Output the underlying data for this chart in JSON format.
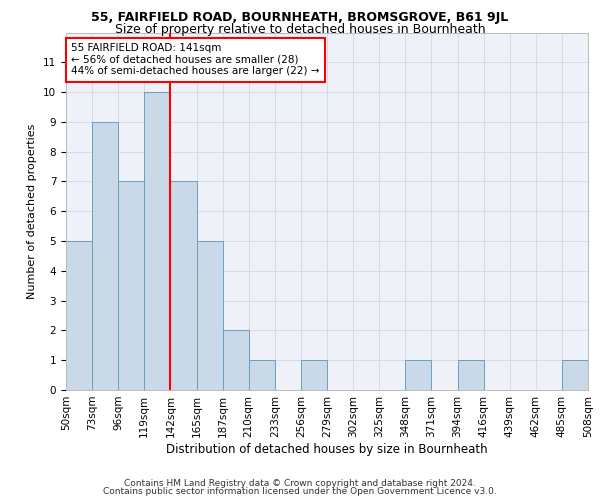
{
  "title1": "55, FAIRFIELD ROAD, BOURNHEATH, BROMSGROVE, B61 9JL",
  "title2": "Size of property relative to detached houses in Bournheath",
  "xlabel": "Distribution of detached houses by size in Bournheath",
  "ylabel": "Number of detached properties",
  "bar_values": [
    5,
    9,
    7,
    10,
    7,
    5,
    2,
    1,
    0,
    1,
    0,
    0,
    0,
    1,
    0,
    1,
    0,
    0,
    0,
    1
  ],
  "bar_labels": [
    "50sqm",
    "73sqm",
    "96sqm",
    "119sqm",
    "142sqm",
    "165sqm",
    "187sqm",
    "210sqm",
    "233sqm",
    "256sqm",
    "279sqm",
    "302sqm",
    "325sqm",
    "348sqm",
    "371sqm",
    "394sqm",
    "416sqm",
    "439sqm",
    "462sqm",
    "485sqm",
    "508sqm"
  ],
  "bar_color": "#c9d9e8",
  "bar_edge_color": "#6a9fc0",
  "ref_line_x": 3.5,
  "annotation_text": "55 FAIRFIELD ROAD: 141sqm\n← 56% of detached houses are smaller (28)\n44% of semi-detached houses are larger (22) →",
  "annotation_box_color": "white",
  "annotation_box_edge": "red",
  "ref_line_color": "red",
  "ylim": [
    0,
    12
  ],
  "yticks": [
    0,
    1,
    2,
    3,
    4,
    5,
    6,
    7,
    8,
    9,
    10,
    11,
    12
  ],
  "grid_color": "#d0d8e8",
  "background_color": "#eef2f8",
  "footer1": "Contains HM Land Registry data © Crown copyright and database right 2024.",
  "footer2": "Contains public sector information licensed under the Open Government Licence v3.0.",
  "title1_fontsize": 9,
  "title2_fontsize": 9,
  "xlabel_fontsize": 8.5,
  "ylabel_fontsize": 8,
  "tick_fontsize": 7.5,
  "annotation_fontsize": 7.5,
  "footer_fontsize": 6.5
}
